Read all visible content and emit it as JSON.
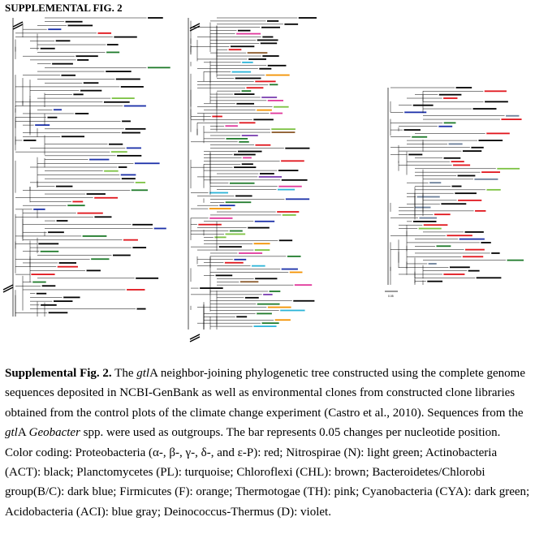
{
  "figure_label": "SUPPLEMENTAL FIG. 2",
  "scale_bar_label": "0.05",
  "caption": {
    "lead": "Supplemental Fig. 2.",
    "p1": " The ",
    "gene1": "gtl",
    "p2": "A neighbor-joining phylogenetic tree constructed using the complete genome sequences deposited in NCBI-GenBank as well as environmental clones from constructed clone libraries obtained from the control plots of the climate change experiment (Castro et al., 2010). Sequences from the ",
    "gene2": "gtl",
    "p3": "A ",
    "genus": "Geobacter",
    "p4": " spp. were used as outgroups. The bar represents 0.05 changes per nucleotide position. Color coding: Proteobacteria (α-, β-, γ-, δ-, and ε-P): red; Nitrospirae (N): light green; Actinobacteria (ACT): black; Planctomycetes (PL): turquoise; Chloroflexi (CHL): brown; Bacteroidetes/Chlorobi group(B/C): dark blue; Firmicutes (F): orange; Thermotogae (TH): pink; Cyanobacteria (CYA): dark green; Acidobacteria (ACI): blue gray; Deinococcus-Thermus (D): violet."
  },
  "colors": {
    "proteobacteria": "#e0141b",
    "nitrospirae": "#7cc242",
    "actinobacteria": "#000000",
    "planctomycetes": "#2bb4d8",
    "chloroflexi": "#8b5a2b",
    "bacteroidetes_chlorobi": "#1a2fa8",
    "firmicutes": "#f39200",
    "thermotogae": "#e0389b",
    "cyanobacteria": "#1e7a2a",
    "acidobacteria": "#6b7f99",
    "deinococcus_thermus": "#7a3fb0"
  }
}
